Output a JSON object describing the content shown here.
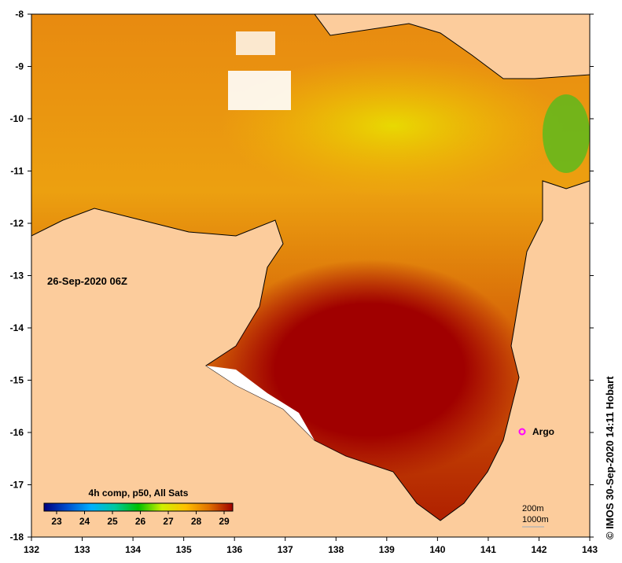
{
  "map": {
    "date_label": "26-Sep-2020 06Z",
    "credit": "© IMOS 30-Sep-2020 14:11 Hobart",
    "lon_ticks": [
      "132",
      "133",
      "134",
      "135",
      "136",
      "137",
      "138",
      "139",
      "140",
      "141",
      "142",
      "143"
    ],
    "lat_ticks": [
      "-8",
      "-9",
      "-10",
      "-11",
      "-12",
      "-13",
      "-14",
      "-15",
      "-16",
      "-17",
      "-18"
    ],
    "argo_label": "Argo",
    "depth_labels": [
      "200m",
      "1000m"
    ],
    "land_color": "#fccc9c",
    "argo_color": "#ff00ff"
  },
  "legend": {
    "title": "4h comp, p50, All Sats",
    "ticks": [
      "23",
      "24",
      "25",
      "26",
      "27",
      "28",
      "29"
    ],
    "colors": [
      "#00007f",
      "#0050d0",
      "#00b0ff",
      "#00c8a0",
      "#00c000",
      "#d0f000",
      "#ffc000",
      "#e07000",
      "#a00000"
    ]
  }
}
